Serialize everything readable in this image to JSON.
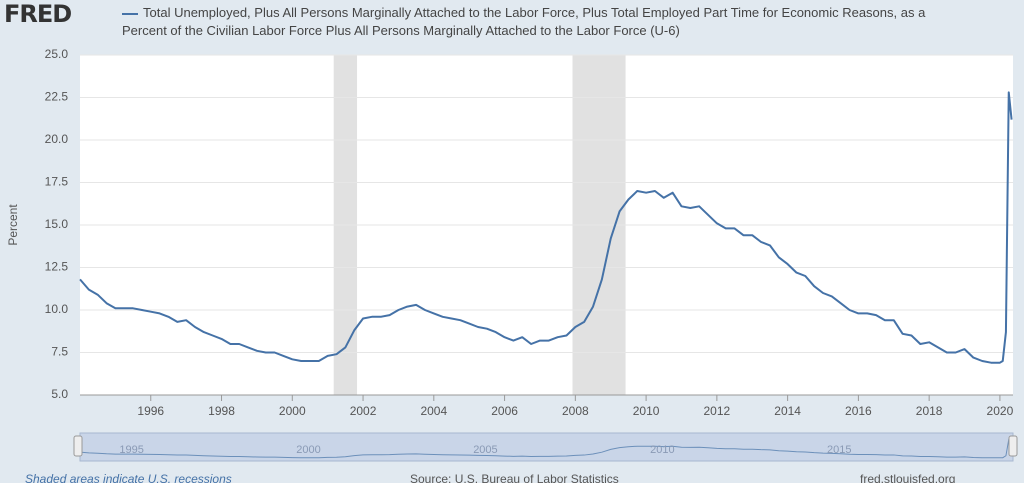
{
  "logo": "FRED",
  "chart_data": {
    "type": "line",
    "x": [
      1994.0,
      1994.25,
      1994.5,
      1994.75,
      1995.0,
      1995.25,
      1995.5,
      1995.75,
      1996.0,
      1996.25,
      1996.5,
      1996.75,
      1997.0,
      1997.25,
      1997.5,
      1997.75,
      1998.0,
      1998.25,
      1998.5,
      1998.75,
      1999.0,
      1999.25,
      1999.5,
      1999.75,
      2000.0,
      2000.25,
      2000.5,
      2000.75,
      2001.0,
      2001.25,
      2001.5,
      2001.75,
      2002.0,
      2002.25,
      2002.5,
      2002.75,
      2003.0,
      2003.25,
      2003.5,
      2003.75,
      2004.0,
      2004.25,
      2004.5,
      2004.75,
      2005.0,
      2005.25,
      2005.5,
      2005.75,
      2006.0,
      2006.25,
      2006.5,
      2006.75,
      2007.0,
      2007.25,
      2007.5,
      2007.75,
      2008.0,
      2008.25,
      2008.5,
      2008.75,
      2009.0,
      2009.25,
      2009.5,
      2009.75,
      2010.0,
      2010.25,
      2010.5,
      2010.75,
      2011.0,
      2011.25,
      2011.5,
      2011.75,
      2012.0,
      2012.25,
      2012.5,
      2012.75,
      2013.0,
      2013.25,
      2013.5,
      2013.75,
      2014.0,
      2014.25,
      2014.5,
      2014.75,
      2015.0,
      2015.25,
      2015.5,
      2015.75,
      2016.0,
      2016.25,
      2016.5,
      2016.75,
      2017.0,
      2017.25,
      2017.5,
      2017.75,
      2018.0,
      2018.25,
      2018.5,
      2018.75,
      2019.0,
      2019.25,
      2019.5,
      2019.75,
      2020.0,
      2020.08,
      2020.17,
      2020.25,
      2020.33
    ],
    "series": [
      {
        "name": "Total Unemployed, Plus All Persons Marginally Attached to the Labor Force, Plus Total Employed Part Time for Economic Reasons, as a Percent of the Civilian Labor Force Plus All Persons Marginally Attached to the Labor Force (U-6)",
        "color": "#4572a7",
        "values": [
          11.8,
          11.2,
          10.9,
          10.4,
          10.1,
          10.1,
          10.1,
          10.0,
          9.9,
          9.8,
          9.6,
          9.3,
          9.4,
          9.0,
          8.7,
          8.5,
          8.3,
          8.0,
          8.0,
          7.8,
          7.6,
          7.5,
          7.5,
          7.3,
          7.1,
          7.0,
          7.0,
          7.0,
          7.3,
          7.4,
          7.8,
          8.8,
          9.5,
          9.6,
          9.6,
          9.7,
          10.0,
          10.2,
          10.3,
          10.0,
          9.8,
          9.6,
          9.5,
          9.4,
          9.2,
          9.0,
          8.9,
          8.7,
          8.4,
          8.2,
          8.4,
          8.0,
          8.2,
          8.2,
          8.4,
          8.5,
          9.0,
          9.3,
          10.2,
          11.8,
          14.2,
          15.8,
          16.5,
          17.0,
          16.9,
          17.0,
          16.6,
          16.9,
          16.1,
          16.0,
          16.1,
          15.6,
          15.1,
          14.8,
          14.8,
          14.4,
          14.4,
          14.0,
          13.8,
          13.1,
          12.7,
          12.2,
          12.0,
          11.4,
          11.0,
          10.8,
          10.4,
          10.0,
          9.8,
          9.8,
          9.7,
          9.4,
          9.4,
          8.6,
          8.5,
          8.0,
          8.1,
          7.8,
          7.5,
          7.5,
          7.7,
          7.2,
          7.0,
          6.9,
          6.9,
          7.0,
          8.7,
          22.8,
          21.2
        ]
      }
    ],
    "y_label": "Percent",
    "xlim": [
      1994.0,
      2020.37
    ],
    "xticks": [
      1996,
      1998,
      2000,
      2002,
      2004,
      2006,
      2008,
      2010,
      2012,
      2014,
      2016,
      2018,
      2020
    ],
    "ylim": [
      5,
      25
    ],
    "yticks": [
      {
        "value": 5,
        "label": "5.0"
      },
      {
        "value": 7.5,
        "label": "7.5"
      },
      {
        "value": 10,
        "label": "10.0"
      },
      {
        "value": 12.5,
        "label": "12.5"
      },
      {
        "value": 15,
        "label": "15.0"
      },
      {
        "value": 17.5,
        "label": "17.5"
      },
      {
        "value": 20,
        "label": "20.0"
      },
      {
        "value": 22.5,
        "label": "22.5"
      },
      {
        "value": 25,
        "label": "25.0"
      }
    ],
    "grid": true,
    "recessions": [
      [
        2001.17,
        2001.83
      ],
      [
        2007.92,
        2009.42
      ]
    ],
    "navigator_ticks": [
      1995,
      2000,
      2005,
      2010,
      2015
    ]
  },
  "footer": {
    "left": "Shaded areas indicate U.S. recessions",
    "center": "Source: U.S. Bureau of Labor Statistics",
    "right": "fred.stlouisfed.org"
  }
}
